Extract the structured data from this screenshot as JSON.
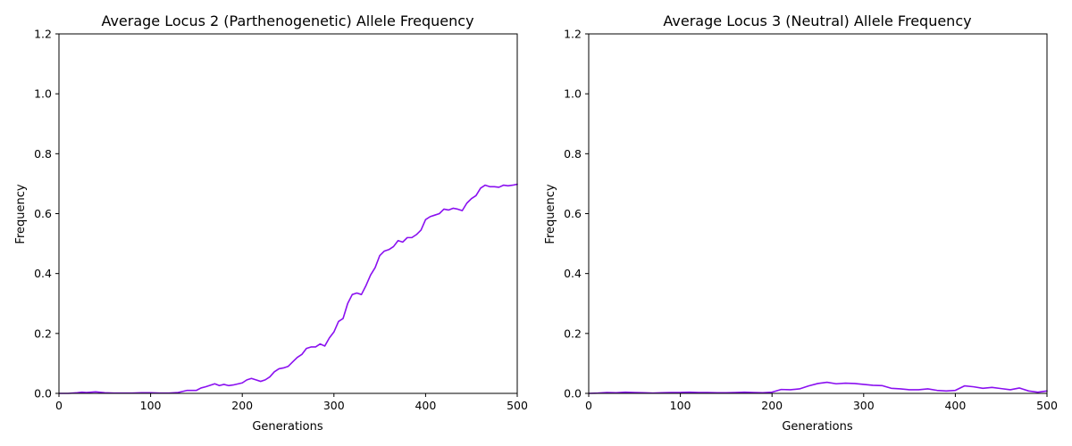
{
  "chart_data": [
    {
      "type": "line",
      "title": "Average Locus 2 (Parthenogenetic) Allele Frequency",
      "xlabel": "Generations",
      "ylabel": "Frequency",
      "xlim": [
        0,
        500
      ],
      "ylim": [
        0,
        1.2
      ],
      "xticks": [
        0,
        100,
        200,
        300,
        400,
        500
      ],
      "yticks": [
        0.0,
        0.2,
        0.4,
        0.6,
        0.8,
        1.0,
        1.2
      ],
      "grid": false,
      "line_color": "#8a10f0",
      "series": [
        {
          "x": [
            0,
            10,
            20,
            25,
            30,
            40,
            50,
            60,
            70,
            80,
            90,
            100,
            110,
            120,
            130,
            140,
            150,
            155,
            160,
            170,
            175,
            180,
            185,
            190,
            200,
            205,
            210,
            215,
            220,
            225,
            230,
            235,
            240,
            245,
            250,
            255,
            260,
            265,
            270,
            275,
            280,
            285,
            290,
            295,
            300,
            305,
            310,
            315,
            320,
            325,
            330,
            335,
            340,
            345,
            350,
            355,
            360,
            365,
            370,
            375,
            380,
            385,
            390,
            395,
            400,
            405,
            410,
            415,
            420,
            425,
            430,
            435,
            440,
            445,
            450,
            455,
            460,
            465,
            470,
            475,
            480,
            485,
            490,
            495,
            500
          ],
          "y": [
            0.0,
            0.0,
            0.002,
            0.004,
            0.003,
            0.005,
            0.002,
            0.001,
            0.001,
            0.001,
            0.002,
            0.002,
            0.001,
            0.001,
            0.003,
            0.01,
            0.01,
            0.018,
            0.022,
            0.032,
            0.026,
            0.03,
            0.026,
            0.028,
            0.035,
            0.045,
            0.05,
            0.045,
            0.04,
            0.045,
            0.055,
            0.072,
            0.082,
            0.085,
            0.09,
            0.105,
            0.12,
            0.13,
            0.15,
            0.155,
            0.155,
            0.165,
            0.158,
            0.185,
            0.205,
            0.24,
            0.25,
            0.3,
            0.33,
            0.335,
            0.33,
            0.36,
            0.395,
            0.42,
            0.46,
            0.475,
            0.48,
            0.49,
            0.51,
            0.505,
            0.52,
            0.52,
            0.53,
            0.545,
            0.58,
            0.59,
            0.595,
            0.6,
            0.615,
            0.612,
            0.618,
            0.615,
            0.61,
            0.635,
            0.65,
            0.66,
            0.685,
            0.695,
            0.69,
            0.69,
            0.688,
            0.695,
            0.693,
            0.695,
            0.698
          ]
        }
      ]
    },
    {
      "type": "line",
      "title": "Average Locus 3 (Neutral) Allele Frequency",
      "xlabel": "Generations",
      "ylabel": "Frequency",
      "xlim": [
        0,
        500
      ],
      "ylim": [
        0,
        1.2
      ],
      "xticks": [
        0,
        100,
        200,
        300,
        400,
        500
      ],
      "yticks": [
        0.0,
        0.2,
        0.4,
        0.6,
        0.8,
        1.0,
        1.2
      ],
      "grid": false,
      "line_color": "#8a10f0",
      "series": [
        {
          "x": [
            0,
            10,
            20,
            30,
            40,
            50,
            60,
            70,
            80,
            90,
            100,
            110,
            120,
            130,
            140,
            150,
            160,
            170,
            180,
            190,
            200,
            210,
            220,
            230,
            240,
            250,
            260,
            270,
            280,
            290,
            300,
            310,
            320,
            330,
            340,
            350,
            360,
            370,
            380,
            390,
            400,
            410,
            420,
            430,
            440,
            450,
            460,
            470,
            480,
            490,
            500
          ],
          "y": [
            0.0,
            0.001,
            0.003,
            0.002,
            0.004,
            0.003,
            0.002,
            0.001,
            0.002,
            0.003,
            0.003,
            0.004,
            0.003,
            0.003,
            0.002,
            0.002,
            0.003,
            0.004,
            0.003,
            0.002,
            0.004,
            0.013,
            0.012,
            0.015,
            0.025,
            0.033,
            0.037,
            0.032,
            0.034,
            0.033,
            0.03,
            0.027,
            0.026,
            0.017,
            0.015,
            0.012,
            0.012,
            0.015,
            0.01,
            0.008,
            0.01,
            0.025,
            0.022,
            0.017,
            0.02,
            0.016,
            0.012,
            0.018,
            0.008,
            0.004,
            0.008
          ]
        }
      ]
    }
  ]
}
